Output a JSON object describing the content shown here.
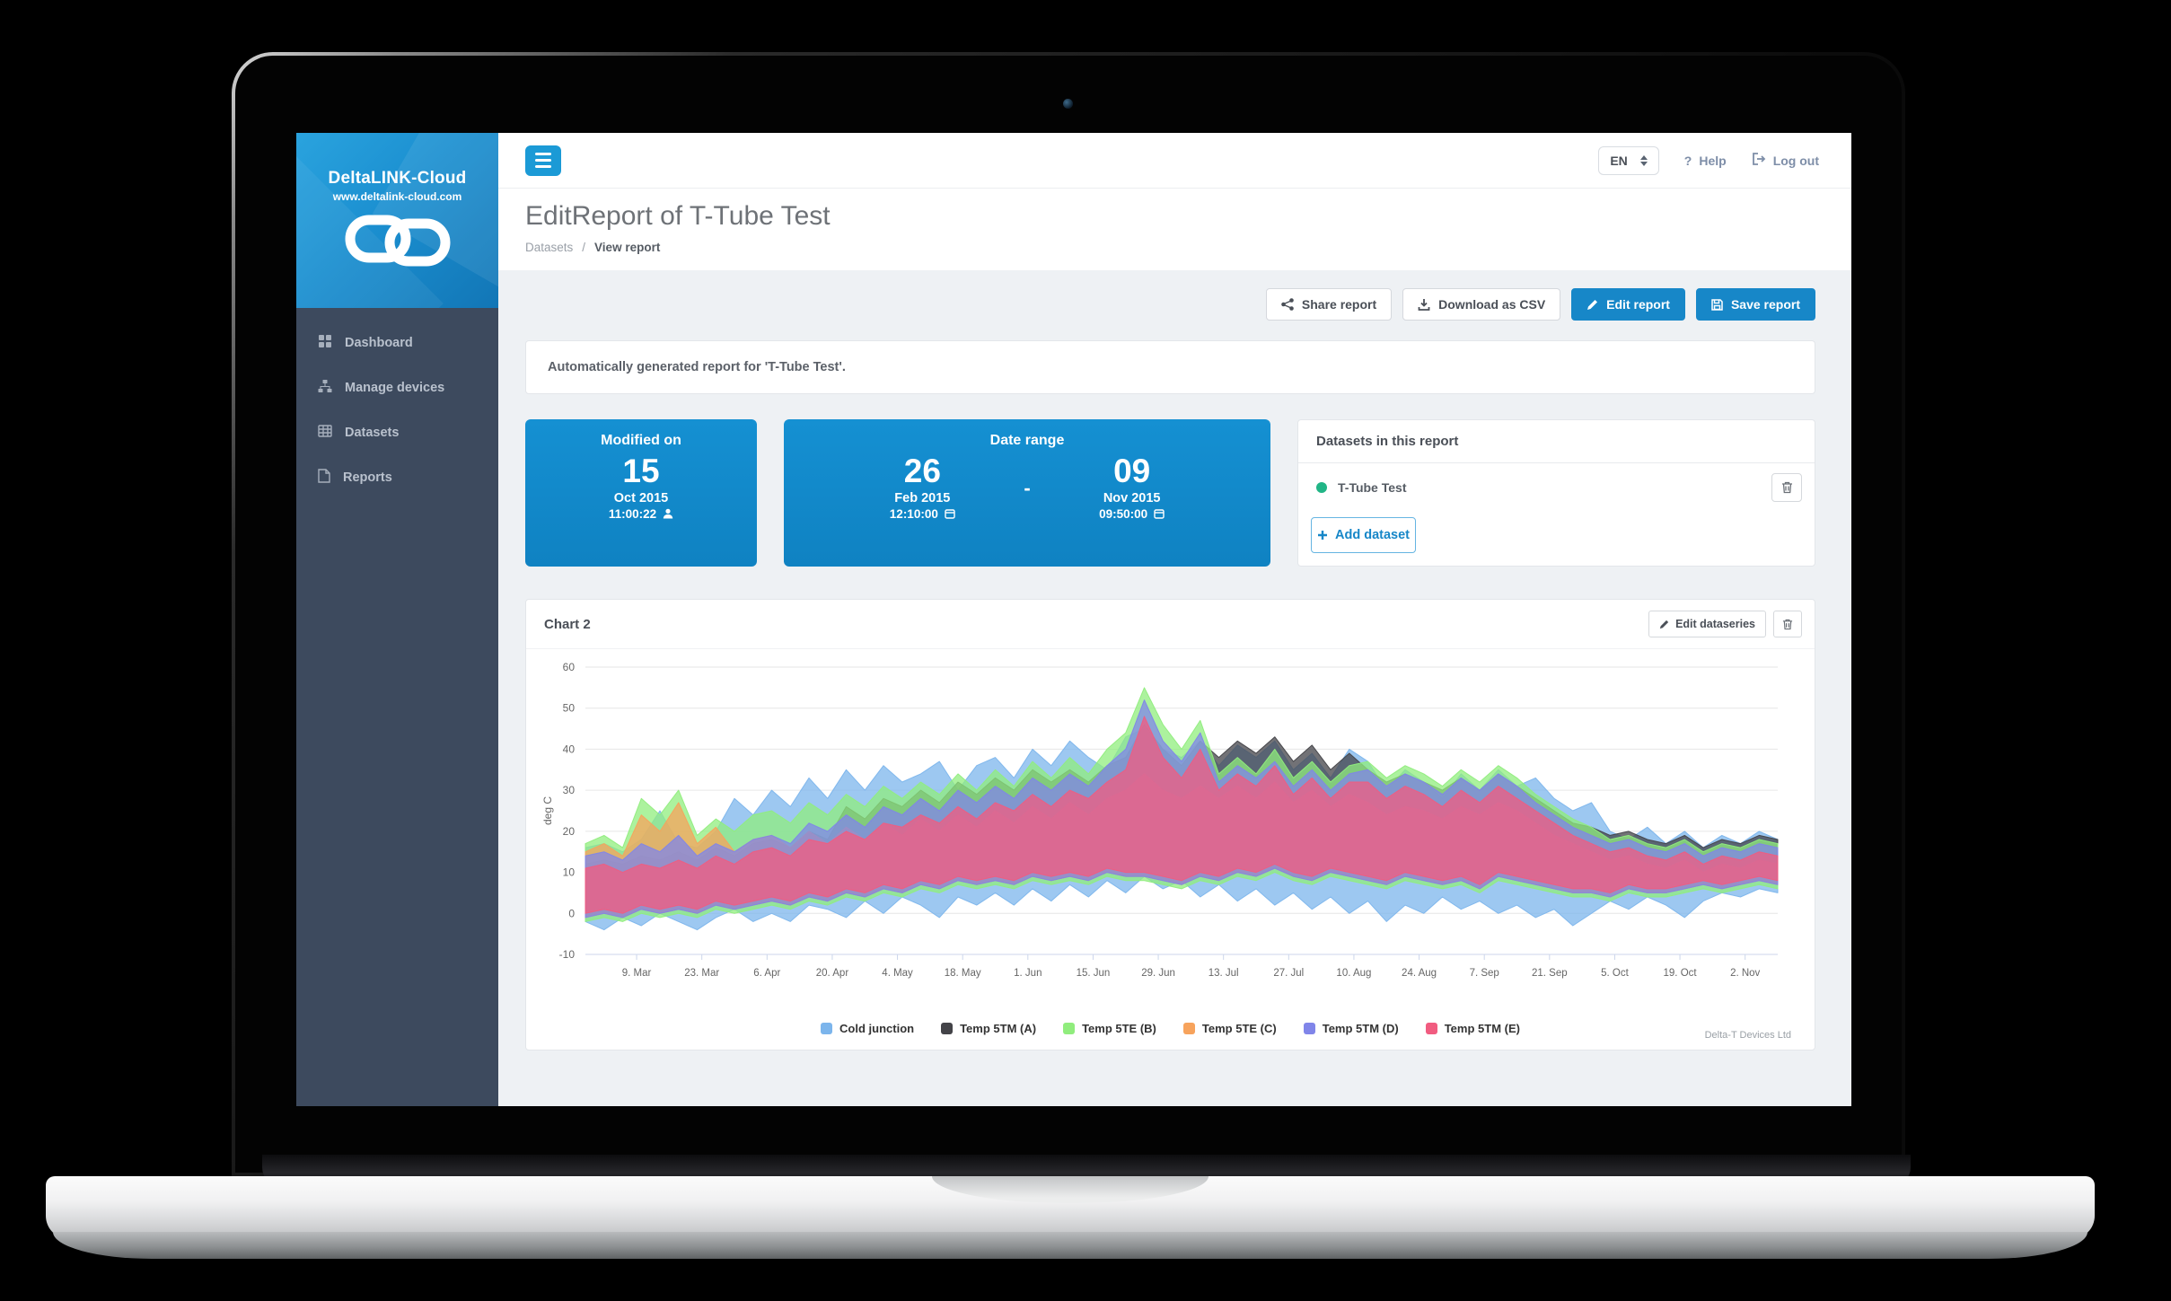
{
  "window": {
    "lang": "EN",
    "help_label": "Help",
    "logout_label": "Log out"
  },
  "colors": {
    "accent_blue": "#1b9ad6",
    "button_blue": "#1787c8",
    "card_blue": "#1388ca",
    "sidebar_bg": "#3d4a5e",
    "dataset_dot_green": "#21b586"
  },
  "sidebar": {
    "brand": "DeltaLINK-Cloud",
    "brand_url": "www.deltalink-cloud.com",
    "items": [
      {
        "id": "dashboard",
        "label": "Dashboard",
        "icon": "grid-icon"
      },
      {
        "id": "manage-devices",
        "label": "Manage devices",
        "icon": "sitemap-icon"
      },
      {
        "id": "datasets",
        "label": "Datasets",
        "icon": "table-icon"
      },
      {
        "id": "reports",
        "label": "Reports",
        "icon": "file-icon"
      }
    ]
  },
  "header": {
    "title": "EditReport of T-Tube Test",
    "breadcrumb_parent": "Datasets",
    "breadcrumb_sep": "/",
    "breadcrumb_current": "View report"
  },
  "toolbar": {
    "share_label": "Share report",
    "download_label": "Download as CSV",
    "edit_label": "Edit report",
    "save_label": "Save report"
  },
  "notice_text": "Automatically generated report for 'T-Tube Test'.",
  "modified_card": {
    "title": "Modified on",
    "day": "15",
    "monthyear": "Oct 2015",
    "time": "11:00:22"
  },
  "range_card": {
    "title": "Date range",
    "separator": "-",
    "from": {
      "day": "26",
      "monthyear": "Feb 2015",
      "time": "12:10:00"
    },
    "to": {
      "day": "09",
      "monthyear": "Nov 2015",
      "time": "09:50:00"
    }
  },
  "datasets_panel": {
    "title": "Datasets in this report",
    "items": [
      {
        "name": "T-Tube Test"
      }
    ],
    "add_label": "Add dataset"
  },
  "chart_panel": {
    "title": "Chart 2",
    "edit_button_label": "Edit dataseries",
    "watermark": "Delta-T Devices Ltd"
  },
  "chart_data": {
    "type": "area",
    "subtype": "overlapping min-max range bands (daily temperature ranges)",
    "title": "Chart 2",
    "xlabel": "",
    "ylabel": "deg C",
    "ylim": [
      -10,
      60
    ],
    "y_ticks": [
      60,
      50,
      40,
      30,
      20,
      10,
      0,
      -10
    ],
    "grid": "horizontal",
    "legend_position": "bottom",
    "x_range": "26 Feb 2015 - 9 Nov 2015",
    "x_total_days": 256,
    "sample_step_days": 4,
    "x_tick_days": [
      11,
      25,
      39,
      53,
      67,
      81,
      95,
      109,
      123,
      137,
      151,
      165,
      179,
      193,
      207,
      221,
      235,
      249
    ],
    "x_tick_labels": [
      "9. Mar",
      "23. Mar",
      "6. Apr",
      "20. Apr",
      "4. May",
      "18. May",
      "1. Jun",
      "15. Jun",
      "29. Jun",
      "13. Jul",
      "27. Jul",
      "10. Aug",
      "24. Aug",
      "7. Sep",
      "21. Sep",
      "5. Oct",
      "19. Oct",
      "2. Nov"
    ],
    "series": [
      {
        "name": "Cold junction",
        "color": "#7cb5ec",
        "min": [
          -2,
          -4,
          -1,
          -3,
          0,
          -2,
          -4,
          -1,
          1,
          -2,
          0,
          -2,
          2,
          1,
          -1,
          3,
          0,
          4,
          2,
          -1,
          4,
          2,
          5,
          2,
          6,
          3,
          7,
          4,
          8,
          5,
          9,
          6,
          8,
          4,
          7,
          3,
          6,
          2,
          5,
          1,
          4,
          0,
          3,
          -2,
          2,
          0,
          4,
          1,
          3,
          0,
          2,
          -1,
          1,
          -3,
          0,
          3,
          1,
          4,
          2,
          -1,
          3,
          5,
          4,
          6,
          5
        ],
        "max": [
          16,
          17,
          15,
          18,
          25,
          17,
          16,
          20,
          28,
          24,
          30,
          26,
          33,
          28,
          35,
          30,
          36,
          32,
          34,
          37,
          30,
          36,
          38,
          33,
          40,
          36,
          42,
          38,
          35,
          43,
          45,
          40,
          38,
          42,
          36,
          41,
          38,
          42,
          35,
          39,
          33,
          40,
          37,
          30,
          35,
          32,
          28,
          34,
          30,
          35,
          31,
          33,
          28,
          25,
          27,
          20,
          18,
          21,
          17,
          20,
          16,
          19,
          17,
          20,
          18
        ]
      },
      {
        "name": "Temp 5TM (A)",
        "color": "#434348",
        "min": [
          -1,
          0,
          -1,
          1,
          0,
          1,
          0,
          2,
          1,
          2,
          3,
          2,
          4,
          3,
          5,
          4,
          6,
          5,
          7,
          6,
          8,
          7,
          8,
          7,
          9,
          8,
          9,
          8,
          10,
          9,
          9,
          8,
          7,
          9,
          8,
          10,
          9,
          11,
          9,
          8,
          10,
          9,
          8,
          7,
          9,
          8,
          7,
          8,
          6,
          9,
          8,
          7,
          6,
          5,
          5,
          4,
          6,
          5,
          5,
          6,
          7,
          6,
          7,
          8,
          7
        ],
        "max": [
          12,
          13,
          12,
          14,
          13,
          15,
          13,
          16,
          14,
          17,
          18,
          16,
          20,
          18,
          26,
          23,
          28,
          26,
          30,
          27,
          32,
          29,
          33,
          30,
          35,
          32,
          35,
          32,
          36,
          38,
          46,
          40,
          36,
          42,
          38,
          42,
          39,
          43,
          37,
          41,
          35,
          39,
          35,
          32,
          34,
          32,
          30,
          33,
          30,
          34,
          31,
          28,
          25,
          22,
          21,
          19,
          20,
          18,
          17,
          19,
          16,
          18,
          17,
          19,
          18
        ]
      },
      {
        "name": "Temp 5TE (B)",
        "color": "#90ed7d",
        "min": [
          -2,
          -1,
          -2,
          0,
          -1,
          0,
          -1,
          1,
          0,
          1,
          2,
          1,
          3,
          2,
          4,
          3,
          5,
          4,
          6,
          5,
          7,
          6,
          7,
          6,
          8,
          7,
          8,
          7,
          9,
          8,
          8,
          7,
          6,
          8,
          7,
          9,
          8,
          10,
          8,
          7,
          9,
          8,
          7,
          6,
          8,
          7,
          6,
          7,
          5,
          8,
          7,
          6,
          5,
          4,
          4,
          3,
          5,
          4,
          4,
          5,
          6,
          5,
          6,
          7,
          6
        ],
        "max": [
          17,
          19,
          16,
          28,
          24,
          30,
          19,
          23,
          20,
          24,
          25,
          22,
          27,
          24,
          29,
          26,
          31,
          28,
          32,
          29,
          34,
          30,
          35,
          31,
          37,
          33,
          38,
          34,
          40,
          44,
          55,
          46,
          40,
          47,
          34,
          38,
          34,
          40,
          33,
          37,
          32,
          36,
          37,
          33,
          36,
          34,
          31,
          35,
          32,
          36,
          33,
          29,
          26,
          23,
          21,
          18,
          19,
          17,
          16,
          18,
          15,
          17,
          16,
          18,
          17
        ]
      },
      {
        "name": "Temp 5TE (C)",
        "color": "#f7a35c",
        "min": [
          -1,
          0,
          -1,
          1,
          0,
          1,
          0,
          2,
          1,
          2,
          3,
          2,
          4,
          3,
          5,
          4,
          6,
          5,
          7,
          6,
          8,
          7,
          8,
          7,
          9,
          8,
          9,
          8,
          10,
          9,
          9,
          8,
          7,
          9,
          8,
          10,
          9,
          11,
          9,
          8,
          10,
          9,
          8,
          7,
          9,
          8,
          7,
          8,
          6,
          9,
          8,
          7,
          6,
          5,
          5,
          4,
          6,
          5,
          5,
          6,
          7,
          6,
          7,
          8,
          7
        ],
        "max": [
          15,
          17,
          14,
          24,
          20,
          27,
          17,
          21,
          15,
          18,
          19,
          16,
          20,
          17,
          21,
          18,
          22,
          19,
          23,
          20,
          24,
          21,
          25,
          22,
          26,
          23,
          27,
          24,
          28,
          30,
          34,
          30,
          28,
          31,
          28,
          31,
          28,
          32,
          27,
          30,
          26,
          29,
          27,
          24,
          26,
          25,
          23,
          26,
          24,
          27,
          25,
          22,
          19,
          17,
          15,
          13,
          14,
          12,
          11,
          13,
          10,
          12,
          11,
          13,
          12
        ]
      },
      {
        "name": "Temp 5TM (D)",
        "color": "#8085e9",
        "min": [
          -1,
          0,
          -1,
          1,
          0,
          1,
          0,
          2,
          1,
          2,
          3,
          2,
          4,
          3,
          5,
          4,
          6,
          5,
          7,
          6,
          8,
          7,
          8,
          7,
          9,
          8,
          9,
          8,
          10,
          9,
          9,
          8,
          7,
          9,
          8,
          10,
          9,
          11,
          9,
          8,
          10,
          9,
          8,
          7,
          9,
          8,
          7,
          8,
          6,
          9,
          8,
          7,
          6,
          5,
          5,
          4,
          6,
          5,
          5,
          6,
          7,
          6,
          7,
          8,
          7
        ],
        "max": [
          14,
          15,
          13,
          17,
          15,
          19,
          14,
          17,
          15,
          18,
          19,
          17,
          22,
          20,
          24,
          21,
          26,
          24,
          28,
          25,
          30,
          27,
          31,
          28,
          33,
          30,
          34,
          31,
          36,
          40,
          52,
          42,
          37,
          44,
          32,
          36,
          33,
          37,
          31,
          35,
          30,
          34,
          35,
          31,
          34,
          32,
          29,
          33,
          30,
          34,
          31,
          27,
          24,
          21,
          19,
          17,
          18,
          16,
          15,
          17,
          14,
          16,
          15,
          17,
          16
        ]
      },
      {
        "name": "Temp 5TM (E)",
        "color": "#f15c80",
        "min": [
          0,
          1,
          0,
          2,
          1,
          2,
          1,
          3,
          2,
          3,
          4,
          3,
          5,
          4,
          6,
          5,
          7,
          6,
          8,
          7,
          9,
          8,
          9,
          8,
          10,
          9,
          10,
          9,
          11,
          10,
          10,
          9,
          8,
          10,
          9,
          11,
          10,
          12,
          10,
          9,
          11,
          10,
          9,
          8,
          10,
          9,
          8,
          9,
          7,
          10,
          9,
          8,
          7,
          6,
          6,
          5,
          7,
          6,
          6,
          7,
          8,
          7,
          8,
          9,
          8
        ],
        "max": [
          11,
          12,
          10,
          12,
          11,
          13,
          11,
          14,
          12,
          15,
          16,
          14,
          18,
          17,
          20,
          18,
          22,
          21,
          24,
          22,
          26,
          23,
          27,
          25,
          29,
          26,
          30,
          28,
          32,
          35,
          48,
          38,
          33,
          40,
          30,
          34,
          31,
          36,
          29,
          33,
          28,
          32,
          32,
          28,
          31,
          29,
          26,
          30,
          27,
          31,
          28,
          25,
          22,
          19,
          17,
          15,
          16,
          14,
          13,
          15,
          12,
          14,
          13,
          15,
          14
        ]
      }
    ]
  }
}
